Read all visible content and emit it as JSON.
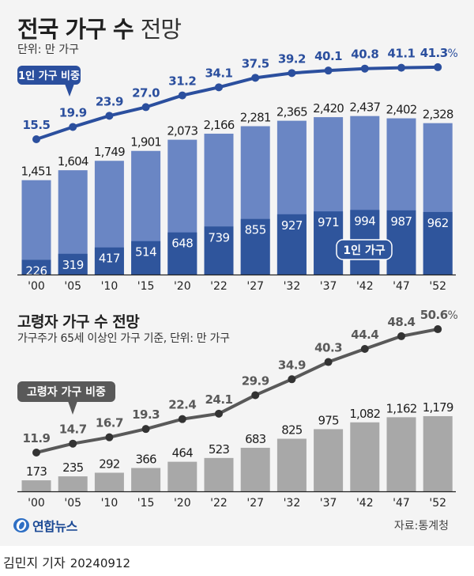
{
  "header": {
    "title_bold": "전국 가구 수",
    "title_light": "전망",
    "unit": "단위: 만 가구"
  },
  "colors": {
    "total_bar": "#6a86c4",
    "single_bar": "#2f559c",
    "single_line": "#2b4f9e",
    "single_label": "#2b4f9e",
    "elderly_bar": "#a8a8a8",
    "elderly_line": "#595959",
    "elderly_label": "#595959"
  },
  "chart_data": [
    {
      "type": "bar",
      "title": "전국 가구 수 전망",
      "unit": "단위: 만 가구",
      "categories": [
        "'00",
        "'05",
        "'10",
        "'15",
        "'20",
        "'22",
        "'27",
        "'32",
        "'37",
        "'42",
        "'47",
        "'52"
      ],
      "series": [
        {
          "name": "전체 가구",
          "values": [
            1451,
            1604,
            1749,
            1901,
            2073,
            2166,
            2281,
            2365,
            2420,
            2437,
            2402,
            2328
          ],
          "labels": [
            "1,451",
            "1,604",
            "1,749",
            "1,901",
            "2,073",
            "2,166",
            "2,281",
            "2,365",
            "2,420",
            "2,437",
            "2,402",
            "2,328"
          ]
        },
        {
          "name": "1인 가구",
          "values": [
            226,
            319,
            417,
            514,
            648,
            739,
            855,
            927,
            971,
            994,
            987,
            962
          ],
          "labels": [
            "226",
            "319",
            "417",
            "514",
            "648",
            "739",
            "855",
            "927",
            "971",
            "994",
            "987",
            "962"
          ]
        }
      ],
      "line": {
        "name": "1인 가구 비중",
        "values": [
          15.5,
          19.9,
          23.9,
          27.0,
          31.2,
          34.1,
          37.5,
          39.2,
          40.1,
          40.8,
          41.1,
          41.3
        ],
        "labels": [
          "15.5",
          "19.9",
          "23.9",
          "27.0",
          "31.2",
          "34.1",
          "37.5",
          "39.2",
          "40.1",
          "40.8",
          "41.1",
          "41.3"
        ],
        "last_suffix": "%"
      },
      "legend": {
        "line_callout": "1인 가구 비중",
        "bar_tag": "1인 가구"
      }
    },
    {
      "type": "bar",
      "title": "고령자 가구 수 전망",
      "note": "가구주가 65세 이상인 가구 기준, 단위: 만 가구",
      "categories": [
        "'00",
        "'05",
        "'10",
        "'15",
        "'20",
        "'22",
        "'27",
        "'32",
        "'37",
        "'42",
        "'47",
        "'52"
      ],
      "series": [
        {
          "name": "고령자 가구",
          "values": [
            173,
            235,
            292,
            366,
            464,
            523,
            683,
            825,
            975,
            1082,
            1162,
            1179
          ],
          "labels": [
            "173",
            "235",
            "292",
            "366",
            "464",
            "523",
            "683",
            "825",
            "975",
            "1,082",
            "1,162",
            "1,179"
          ]
        }
      ],
      "line": {
        "name": "고령자 가구 비중",
        "values": [
          11.9,
          14.7,
          16.7,
          19.3,
          22.4,
          24.1,
          29.9,
          34.9,
          40.3,
          44.4,
          48.4,
          50.6
        ],
        "labels": [
          "11.9",
          "14.7",
          "16.7",
          "19.3",
          "22.4",
          "24.1",
          "29.9",
          "34.9",
          "40.3",
          "44.4",
          "48.4",
          "50.6"
        ],
        "last_suffix": "%"
      },
      "legend": {
        "line_callout": "고령자 가구 비중"
      }
    }
  ],
  "footer": {
    "source": "자료:통계청",
    "logo_text": "연합뉴스",
    "reporter": "김민지 기자",
    "date": "20240912"
  }
}
